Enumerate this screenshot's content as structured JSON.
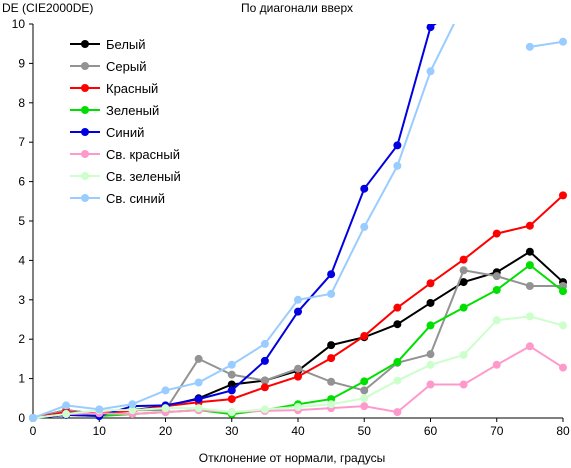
{
  "chart_data": {
    "type": "line",
    "title": "По диагонали вверх",
    "ylabel": "DE (CIE2000DE)",
    "xlabel": "Отклонение от нормали, градусы",
    "xlim": [
      0,
      80
    ],
    "ylim": [
      0,
      10
    ],
    "x_ticks": [
      "0",
      "10",
      "20",
      "30",
      "40",
      "50",
      "60",
      "70",
      "80"
    ],
    "y_ticks": [
      "0",
      "1",
      "2",
      "3",
      "4",
      "5",
      "6",
      "7",
      "8",
      "9",
      "10"
    ],
    "grid": false,
    "legend_position": "top-left",
    "x": [
      0,
      5,
      10,
      15,
      20,
      25,
      30,
      35,
      40,
      45,
      50,
      55,
      60,
      65,
      70,
      75,
      80
    ],
    "series": [
      {
        "name": "Белый",
        "color": "#000000",
        "values": [
          0,
          0.2,
          0.1,
          0.2,
          0.3,
          0.5,
          0.85,
          0.95,
          1.2,
          1.85,
          2.05,
          2.38,
          2.92,
          3.45,
          3.7,
          4.22,
          3.45
        ]
      },
      {
        "name": "Серый",
        "color": "#939393",
        "values": [
          0,
          0.2,
          0.1,
          0.2,
          0.2,
          1.5,
          1.1,
          0.95,
          1.25,
          0.92,
          0.7,
          1.4,
          1.62,
          3.75,
          3.6,
          3.35,
          3.35
        ]
      },
      {
        "name": "Красный",
        "color": "#ff0000",
        "values": [
          0,
          0.15,
          0.12,
          0.18,
          0.3,
          0.4,
          0.48,
          0.78,
          1.05,
          1.52,
          2.08,
          2.8,
          3.42,
          4.02,
          4.68,
          4.88,
          5.65
        ]
      },
      {
        "name": "Зеленый",
        "color": "#00e000",
        "values": [
          0,
          0.08,
          0.05,
          0.1,
          0.15,
          0.2,
          0.1,
          0.2,
          0.35,
          0.48,
          0.93,
          1.42,
          2.35,
          2.8,
          3.25,
          3.88,
          3.22
        ]
      },
      {
        "name": "Синий",
        "color": "#0000e0",
        "values": [
          0,
          0.08,
          0.05,
          0.3,
          0.32,
          0.48,
          0.7,
          1.45,
          2.7,
          3.65,
          5.82,
          6.92,
          9.92,
          10.5,
          null,
          null,
          null
        ]
      },
      {
        "name": "Св. красный",
        "color": "#ff99cc",
        "values": [
          0,
          0.1,
          0.12,
          0.1,
          0.15,
          0.2,
          0.15,
          0.18,
          0.2,
          0.25,
          0.3,
          0.15,
          0.85,
          0.85,
          1.35,
          1.82,
          1.28
        ]
      },
      {
        "name": "Св. зеленый",
        "color": "#ccffcc",
        "values": [
          0,
          0.1,
          0.2,
          0.2,
          0.25,
          0.25,
          0.15,
          0.22,
          0.28,
          0.35,
          0.5,
          0.95,
          1.35,
          1.6,
          2.48,
          2.58,
          2.35
        ]
      },
      {
        "name": "Св. синий",
        "color": "#99ccff",
        "values": [
          0,
          0.32,
          0.22,
          0.35,
          0.7,
          0.9,
          1.35,
          1.88,
          3.0,
          3.15,
          4.85,
          6.4,
          8.8,
          10.5,
          null,
          9.42,
          9.55
        ]
      }
    ]
  }
}
